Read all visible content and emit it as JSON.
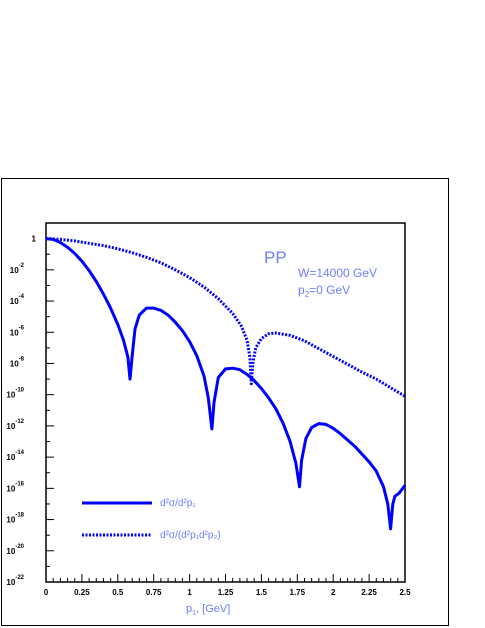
{
  "chart_data": {
    "type": "line",
    "xlabel": "p",
    "xlabel_sub": "1",
    "xlabel_unit": ", [GeV]",
    "xlim": [
      0,
      2.5
    ],
    "ylim_log10": [
      -22,
      1
    ],
    "x_ticks": [
      "0",
      "0.25",
      "0.5",
      "0.75",
      "1",
      "1.25",
      "1.5",
      "1.75",
      "2",
      "2.25",
      "2.5"
    ],
    "y_ticks": [
      {
        "base": "1",
        "exp": ""
      },
      {
        "base": "10",
        "exp": "-2"
      },
      {
        "base": "10",
        "exp": "-4"
      },
      {
        "base": "10",
        "exp": "-6"
      },
      {
        "base": "10",
        "exp": "-8"
      },
      {
        "base": "10",
        "exp": "-10"
      },
      {
        "base": "10",
        "exp": "-12"
      },
      {
        "base": "10",
        "exp": "-14"
      },
      {
        "base": "10",
        "exp": "-16"
      },
      {
        "base": "10",
        "exp": "-18"
      },
      {
        "base": "10",
        "exp": "-20"
      },
      {
        "base": "10",
        "exp": "-22"
      }
    ],
    "y_tick_log10": [
      0,
      -2,
      -4,
      -6,
      -8,
      -10,
      -12,
      -14,
      -16,
      -18,
      -20,
      -22
    ],
    "annotations": {
      "process": "PP",
      "energy": "W=14000 GeV",
      "p2_label": "p",
      "p2_sub": "2",
      "p2_value": "=0 GeV"
    },
    "legend": [
      {
        "text": "d²σ/d²p₁",
        "style": "solid"
      },
      {
        "text": "d²σ/(d²p₁d²p₂)",
        "style": "dotted"
      }
    ],
    "series": [
      {
        "style": "solid",
        "points": [
          [
            0,
            0
          ],
          [
            0.05,
            -0.05
          ],
          [
            0.1,
            -0.25
          ],
          [
            0.15,
            -0.55
          ],
          [
            0.2,
            -0.95
          ],
          [
            0.25,
            -1.45
          ],
          [
            0.3,
            -2.05
          ],
          [
            0.35,
            -2.75
          ],
          [
            0.4,
            -3.55
          ],
          [
            0.45,
            -4.45
          ],
          [
            0.5,
            -5.5
          ],
          [
            0.54,
            -6.5
          ],
          [
            0.57,
            -7.6
          ],
          [
            0.585,
            -9.0
          ],
          [
            0.6,
            -7.5
          ],
          [
            0.62,
            -5.8
          ],
          [
            0.65,
            -4.9
          ],
          [
            0.7,
            -4.45
          ],
          [
            0.75,
            -4.45
          ],
          [
            0.8,
            -4.6
          ],
          [
            0.85,
            -4.9
          ],
          [
            0.9,
            -5.35
          ],
          [
            0.95,
            -5.9
          ],
          [
            1.0,
            -6.6
          ],
          [
            1.05,
            -7.5
          ],
          [
            1.1,
            -8.8
          ],
          [
            1.13,
            -10.2
          ],
          [
            1.155,
            -12.2
          ],
          [
            1.17,
            -10.5
          ],
          [
            1.2,
            -8.9
          ],
          [
            1.25,
            -8.35
          ],
          [
            1.3,
            -8.3
          ],
          [
            1.35,
            -8.4
          ],
          [
            1.4,
            -8.7
          ],
          [
            1.45,
            -9.1
          ],
          [
            1.5,
            -9.6
          ],
          [
            1.55,
            -10.2
          ],
          [
            1.6,
            -10.9
          ],
          [
            1.65,
            -11.8
          ],
          [
            1.7,
            -13.0
          ],
          [
            1.74,
            -14.4
          ],
          [
            1.765,
            -15.9
          ],
          [
            1.78,
            -14.2
          ],
          [
            1.81,
            -12.8
          ],
          [
            1.85,
            -12.1
          ],
          [
            1.9,
            -11.85
          ],
          [
            1.95,
            -11.9
          ],
          [
            2.0,
            -12.15
          ],
          [
            2.05,
            -12.5
          ],
          [
            2.1,
            -12.9
          ],
          [
            2.15,
            -13.3
          ],
          [
            2.2,
            -13.8
          ],
          [
            2.25,
            -14.3
          ],
          [
            2.3,
            -14.9
          ],
          [
            2.35,
            -15.9
          ],
          [
            2.38,
            -17.0
          ],
          [
            2.4,
            -18.6
          ],
          [
            2.415,
            -17.0
          ],
          [
            2.43,
            -16.5
          ],
          [
            2.46,
            -16.3
          ],
          [
            2.5,
            -15.8
          ]
        ]
      },
      {
        "style": "dotted",
        "points": [
          [
            0,
            0
          ],
          [
            0.1,
            -0.05
          ],
          [
            0.2,
            -0.15
          ],
          [
            0.3,
            -0.3
          ],
          [
            0.4,
            -0.45
          ],
          [
            0.5,
            -0.65
          ],
          [
            0.6,
            -0.9
          ],
          [
            0.7,
            -1.2
          ],
          [
            0.8,
            -1.55
          ],
          [
            0.9,
            -2.0
          ],
          [
            1.0,
            -2.5
          ],
          [
            1.1,
            -3.1
          ],
          [
            1.2,
            -3.85
          ],
          [
            1.3,
            -4.8
          ],
          [
            1.36,
            -5.6
          ],
          [
            1.4,
            -6.5
          ],
          [
            1.42,
            -7.6
          ],
          [
            1.43,
            -9.3
          ],
          [
            1.44,
            -8.0
          ],
          [
            1.46,
            -7.0
          ],
          [
            1.5,
            -6.4
          ],
          [
            1.55,
            -6.1
          ],
          [
            1.6,
            -6.05
          ],
          [
            1.7,
            -6.2
          ],
          [
            1.8,
            -6.55
          ],
          [
            1.9,
            -7.05
          ],
          [
            2.0,
            -7.55
          ],
          [
            2.1,
            -8.05
          ],
          [
            2.2,
            -8.55
          ],
          [
            2.3,
            -9.0
          ],
          [
            2.4,
            -9.55
          ],
          [
            2.5,
            -10.1
          ]
        ]
      }
    ]
  },
  "colors": {
    "curve": "#0000ff",
    "annotation": "#6f7dff"
  }
}
